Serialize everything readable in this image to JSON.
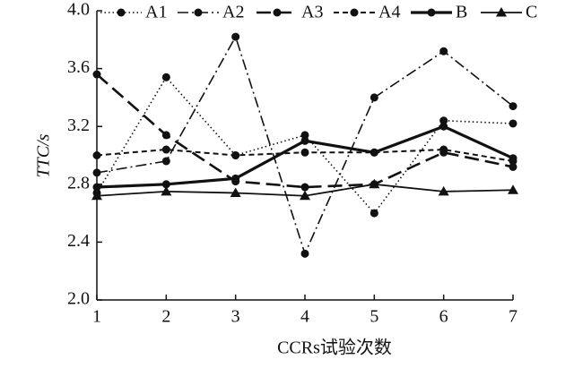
{
  "chart_data": {
    "type": "line",
    "xlabel": "CCRs试验次数",
    "ylabel": "TTC/s",
    "x": [
      1,
      2,
      3,
      4,
      5,
      6,
      7
    ],
    "xlim": [
      1,
      7
    ],
    "xticks": [
      1,
      2,
      3,
      4,
      5,
      6,
      7
    ],
    "ylim": [
      2.0,
      4.0
    ],
    "yticks": [
      {
        "value": 2.0,
        "label": "2.0"
      },
      2.4,
      2.8,
      3.2,
      3.6,
      {
        "value": 4.0,
        "label": "4.0"
      }
    ],
    "legend": "top",
    "series": [
      {
        "name": "A1",
        "color": "#111111",
        "dash": "dotted",
        "marker": "circle",
        "values": [
          2.74,
          3.54,
          3.0,
          3.14,
          2.6,
          3.24,
          3.22
        ]
      },
      {
        "name": "A2",
        "color": "#111111",
        "dash": "dashdot",
        "marker": "circle",
        "values": [
          2.88,
          2.96,
          3.82,
          2.32,
          3.4,
          3.72,
          3.34
        ]
      },
      {
        "name": "A3",
        "color": "#111111",
        "dash": "longdash",
        "marker": "circle",
        "values": [
          3.56,
          3.14,
          2.82,
          2.78,
          2.8,
          3.02,
          2.92
        ]
      },
      {
        "name": "A4",
        "color": "#111111",
        "dash": "shortdash",
        "marker": "circle",
        "values": [
          3.0,
          3.04,
          3.0,
          3.02,
          3.02,
          3.04,
          2.96
        ]
      },
      {
        "name": "B",
        "color": "#111111",
        "dash": "solid-bold",
        "marker": "circle",
        "values": [
          2.78,
          2.8,
          2.84,
          3.1,
          3.02,
          3.2,
          2.98
        ]
      },
      {
        "name": "C",
        "color": "#111111",
        "dash": "solid",
        "marker": "triangle",
        "values": [
          2.72,
          2.75,
          2.74,
          2.72,
          2.8,
          2.75,
          2.76
        ]
      }
    ]
  }
}
